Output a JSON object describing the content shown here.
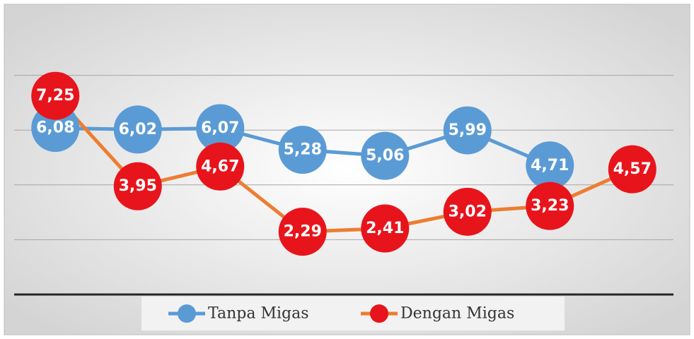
{
  "chart_data": {
    "type": "line",
    "categories": [
      null,
      null,
      null,
      null,
      null,
      null,
      null,
      null
    ],
    "series": [
      {
        "name": "Tanpa Migas",
        "color": "#5b9bd5",
        "marker_color": "#5b9bd5",
        "values": [
          6.08,
          6.02,
          6.07,
          5.28,
          5.06,
          5.99,
          4.71,
          null
        ],
        "value_labels": [
          "6,08",
          "6,02",
          "6,07",
          "5,28",
          "5,06",
          "5,99",
          "4,71",
          null
        ]
      },
      {
        "name": "Dengan Migas",
        "color": "#ed7d31",
        "marker_color": "#e8141c",
        "values": [
          7.25,
          3.95,
          4.67,
          2.29,
          2.41,
          3.02,
          3.23,
          4.57
        ],
        "value_labels": [
          "7,25",
          "3,95",
          "4,67",
          "2,29",
          "2,41",
          "3,02",
          "3,23",
          "4,57"
        ]
      }
    ],
    "ylim": [
      0,
      10
    ],
    "yticks": [
      0,
      2,
      4,
      6,
      8
    ],
    "grid": true,
    "legend": "bottom"
  }
}
